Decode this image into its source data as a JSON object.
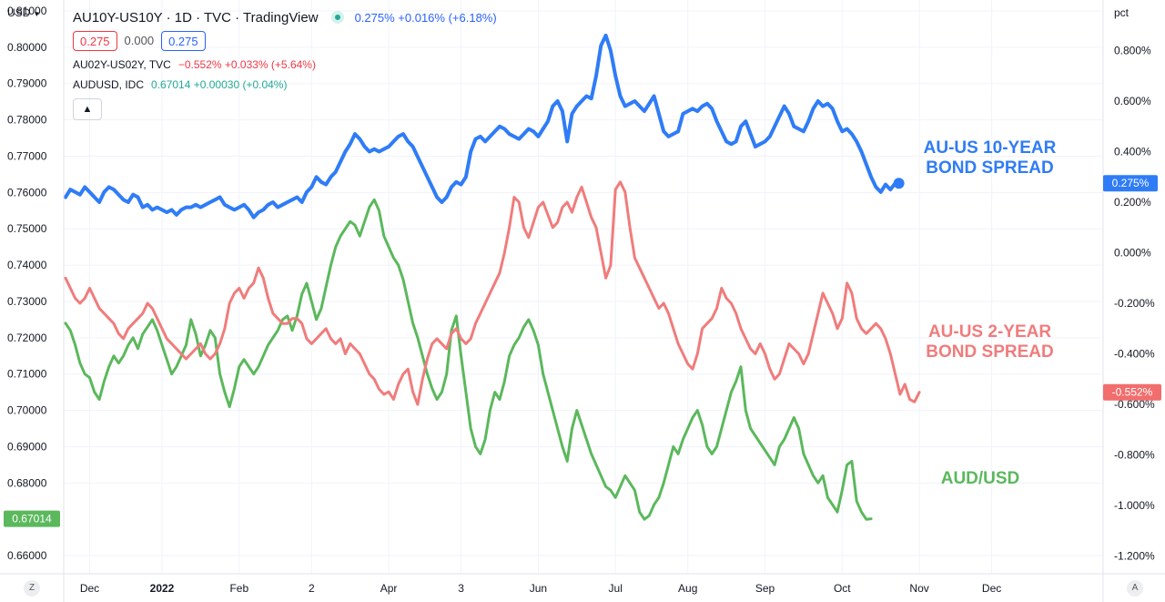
{
  "header": {
    "symbol_title": "AU10Y-US10Y · 1D · TVC · TradingView",
    "quote": "0.275% +0.016% (+6.18%)",
    "pills": {
      "red": "0.275",
      "zero": "0.000",
      "blue": "0.275"
    },
    "legend2": {
      "name": "AU02Y-US02Y, TVC",
      "values": "−0.552% +0.033% (+5.64%)"
    },
    "legend3": {
      "name": "AUDUSD, IDC",
      "values": "0.67014 +0.00030 (+0.04%)"
    },
    "collapse_icon": "chevron-up-icon"
  },
  "axes": {
    "left_unit": "USD",
    "right_unit": "pct",
    "corner_left": "Z",
    "corner_right": "A"
  },
  "annotations": {
    "spread10_line1": "AU-US 10-YEAR",
    "spread10_line2": "BOND SPREAD",
    "spread2_line1": "AU-US 2-YEAR",
    "spread2_line2": "BOND SPREAD",
    "audusd": "AUD/USD"
  },
  "colors": {
    "spread10": "#2f7cf6",
    "spread2": "#f07c7c",
    "audusd": "#5bb85c",
    "grid": "#f0f3fa",
    "axis_text": "#131722"
  },
  "chart_data": {
    "type": "line",
    "x_ticks": [
      "Dec",
      "2022",
      "Feb",
      "2",
      "Apr",
      "3",
      "Jun",
      "Jul",
      "Aug",
      "Sep",
      "Oct",
      "Nov",
      "Dec"
    ],
    "x_tick_index": [
      5,
      20,
      36,
      51,
      67,
      82,
      98,
      114,
      129,
      145,
      161,
      177,
      192
    ],
    "left_axis": {
      "label": "USD",
      "ticks": [
        "0.81000",
        "0.80000",
        "0.79000",
        "0.78000",
        "0.77000",
        "0.76000",
        "0.75000",
        "0.74000",
        "0.73000",
        "0.72000",
        "0.71000",
        "0.70000",
        "0.69000",
        "0.68000",
        "0.66000"
      ],
      "ylim": [
        0.655,
        0.813
      ]
    },
    "right_axis": {
      "label": "pct",
      "ticks": [
        "0.800%",
        "0.600%",
        "0.400%",
        "0.200%",
        "0.000%",
        "-0.200%",
        "-0.400%",
        "-0.600%",
        "-0.800%",
        "-1.000%",
        "-1.200%"
      ],
      "ylim": [
        -1.27,
        1.0
      ]
    },
    "last_labels": {
      "spread10": "0.275%",
      "spread2": "-0.552%",
      "audusd": "0.67014"
    },
    "series": [
      {
        "name": "AU10Y-US10Y",
        "axis": "right",
        "values": [
          0.22,
          0.25,
          0.24,
          0.23,
          0.26,
          0.24,
          0.22,
          0.2,
          0.24,
          0.26,
          0.25,
          0.23,
          0.21,
          0.2,
          0.23,
          0.22,
          0.18,
          0.19,
          0.17,
          0.18,
          0.17,
          0.16,
          0.17,
          0.15,
          0.17,
          0.18,
          0.18,
          0.19,
          0.18,
          0.19,
          0.2,
          0.21,
          0.22,
          0.19,
          0.18,
          0.17,
          0.18,
          0.19,
          0.17,
          0.14,
          0.16,
          0.17,
          0.19,
          0.2,
          0.18,
          0.19,
          0.2,
          0.21,
          0.22,
          0.2,
          0.24,
          0.26,
          0.3,
          0.28,
          0.27,
          0.3,
          0.32,
          0.36,
          0.4,
          0.43,
          0.47,
          0.45,
          0.42,
          0.4,
          0.41,
          0.4,
          0.41,
          0.42,
          0.44,
          0.46,
          0.47,
          0.44,
          0.42,
          0.38,
          0.34,
          0.3,
          0.26,
          0.22,
          0.2,
          0.22,
          0.26,
          0.28,
          0.27,
          0.3,
          0.4,
          0.45,
          0.46,
          0.44,
          0.46,
          0.48,
          0.5,
          0.49,
          0.47,
          0.46,
          0.45,
          0.47,
          0.49,
          0.48,
          0.46,
          0.49,
          0.52,
          0.58,
          0.6,
          0.56,
          0.44,
          0.55,
          0.58,
          0.6,
          0.62,
          0.61,
          0.7,
          0.82,
          0.86,
          0.8,
          0.7,
          0.62,
          0.58,
          0.59,
          0.6,
          0.58,
          0.56,
          0.59,
          0.62,
          0.55,
          0.48,
          0.46,
          0.47,
          0.48,
          0.55,
          0.56,
          0.57,
          0.56,
          0.58,
          0.59,
          0.57,
          0.52,
          0.48,
          0.44,
          0.43,
          0.44,
          0.5,
          0.52,
          0.47,
          0.42,
          0.43,
          0.44,
          0.46,
          0.5,
          0.54,
          0.58,
          0.55,
          0.5,
          0.49,
          0.48,
          0.52,
          0.57,
          0.6,
          0.58,
          0.59,
          0.57,
          0.52,
          0.48,
          0.49,
          0.47,
          0.44,
          0.4,
          0.35,
          0.3,
          0.26,
          0.24,
          0.27,
          0.25,
          0.275
        ]
      },
      {
        "name": "AU02Y-US02Y",
        "axis": "right",
        "values": [
          -0.1,
          -0.14,
          -0.18,
          -0.2,
          -0.18,
          -0.14,
          -0.18,
          -0.22,
          -0.24,
          -0.26,
          -0.28,
          -0.32,
          -0.34,
          -0.3,
          -0.28,
          -0.26,
          -0.24,
          -0.2,
          -0.22,
          -0.26,
          -0.3,
          -0.34,
          -0.36,
          -0.38,
          -0.4,
          -0.42,
          -0.4,
          -0.38,
          -0.36,
          -0.4,
          -0.42,
          -0.4,
          -0.36,
          -0.3,
          -0.2,
          -0.16,
          -0.14,
          -0.18,
          -0.14,
          -0.12,
          -0.06,
          -0.1,
          -0.18,
          -0.24,
          -0.26,
          -0.28,
          -0.28,
          -0.26,
          -0.26,
          -0.28,
          -0.34,
          -0.36,
          -0.34,
          -0.32,
          -0.3,
          -0.34,
          -0.36,
          -0.34,
          -0.4,
          -0.36,
          -0.38,
          -0.4,
          -0.44,
          -0.48,
          -0.5,
          -0.54,
          -0.56,
          -0.55,
          -0.58,
          -0.52,
          -0.48,
          -0.46,
          -0.55,
          -0.6,
          -0.5,
          -0.42,
          -0.36,
          -0.34,
          -0.36,
          -0.38,
          -0.32,
          -0.3,
          -0.34,
          -0.36,
          -0.34,
          -0.28,
          -0.24,
          -0.2,
          -0.16,
          -0.12,
          -0.08,
          0.0,
          0.1,
          0.22,
          0.2,
          0.1,
          0.06,
          0.12,
          0.18,
          0.2,
          0.15,
          0.1,
          0.12,
          0.18,
          0.2,
          0.16,
          0.22,
          0.26,
          0.2,
          0.14,
          0.1,
          0.0,
          -0.1,
          -0.05,
          0.25,
          0.28,
          0.24,
          0.1,
          -0.02,
          -0.06,
          -0.1,
          -0.14,
          -0.18,
          -0.22,
          -0.2,
          -0.24,
          -0.3,
          -0.36,
          -0.4,
          -0.44,
          -0.46,
          -0.4,
          -0.3,
          -0.28,
          -0.26,
          -0.22,
          -0.14,
          -0.18,
          -0.2,
          -0.24,
          -0.3,
          -0.34,
          -0.38,
          -0.4,
          -0.36,
          -0.4,
          -0.46,
          -0.5,
          -0.48,
          -0.42,
          -0.36,
          -0.38,
          -0.4,
          -0.44,
          -0.4,
          -0.32,
          -0.24,
          -0.16,
          -0.2,
          -0.24,
          -0.3,
          -0.26,
          -0.12,
          -0.16,
          -0.26,
          -0.3,
          -0.32,
          -0.3,
          -0.28,
          -0.3,
          -0.34,
          -0.4,
          -0.48,
          -0.56,
          -0.52,
          -0.58,
          -0.59,
          -0.552
        ]
      },
      {
        "name": "AUDUSD",
        "axis": "left",
        "values": [
          0.724,
          0.722,
          0.718,
          0.713,
          0.71,
          0.709,
          0.705,
          0.703,
          0.708,
          0.712,
          0.715,
          0.713,
          0.715,
          0.718,
          0.72,
          0.717,
          0.721,
          0.723,
          0.725,
          0.722,
          0.718,
          0.714,
          0.71,
          0.712,
          0.715,
          0.718,
          0.725,
          0.721,
          0.715,
          0.718,
          0.722,
          0.72,
          0.71,
          0.705,
          0.701,
          0.706,
          0.712,
          0.714,
          0.712,
          0.71,
          0.712,
          0.715,
          0.718,
          0.72,
          0.722,
          0.725,
          0.726,
          0.722,
          0.726,
          0.732,
          0.735,
          0.73,
          0.725,
          0.728,
          0.734,
          0.74,
          0.745,
          0.748,
          0.75,
          0.752,
          0.751,
          0.748,
          0.752,
          0.756,
          0.758,
          0.755,
          0.748,
          0.745,
          0.742,
          0.74,
          0.736,
          0.73,
          0.724,
          0.72,
          0.715,
          0.71,
          0.706,
          0.703,
          0.705,
          0.71,
          0.722,
          0.726,
          0.715,
          0.705,
          0.695,
          0.69,
          0.688,
          0.692,
          0.7,
          0.705,
          0.703,
          0.708,
          0.715,
          0.718,
          0.72,
          0.723,
          0.725,
          0.722,
          0.718,
          0.71,
          0.705,
          0.7,
          0.695,
          0.69,
          0.686,
          0.695,
          0.7,
          0.696,
          0.692,
          0.688,
          0.685,
          0.682,
          0.679,
          0.678,
          0.676,
          0.679,
          0.682,
          0.68,
          0.678,
          0.672,
          0.67,
          0.671,
          0.674,
          0.676,
          0.68,
          0.685,
          0.69,
          0.688,
          0.692,
          0.695,
          0.698,
          0.7,
          0.696,
          0.69,
          0.688,
          0.69,
          0.695,
          0.7,
          0.705,
          0.708,
          0.712,
          0.7,
          0.695,
          0.693,
          0.691,
          0.689,
          0.687,
          0.685,
          0.69,
          0.692,
          0.695,
          0.698,
          0.695,
          0.688,
          0.685,
          0.682,
          0.68,
          0.682,
          0.676,
          0.674,
          0.672,
          0.678,
          0.685,
          0.686,
          0.675,
          0.672,
          0.67,
          0.67014
        ]
      }
    ]
  }
}
